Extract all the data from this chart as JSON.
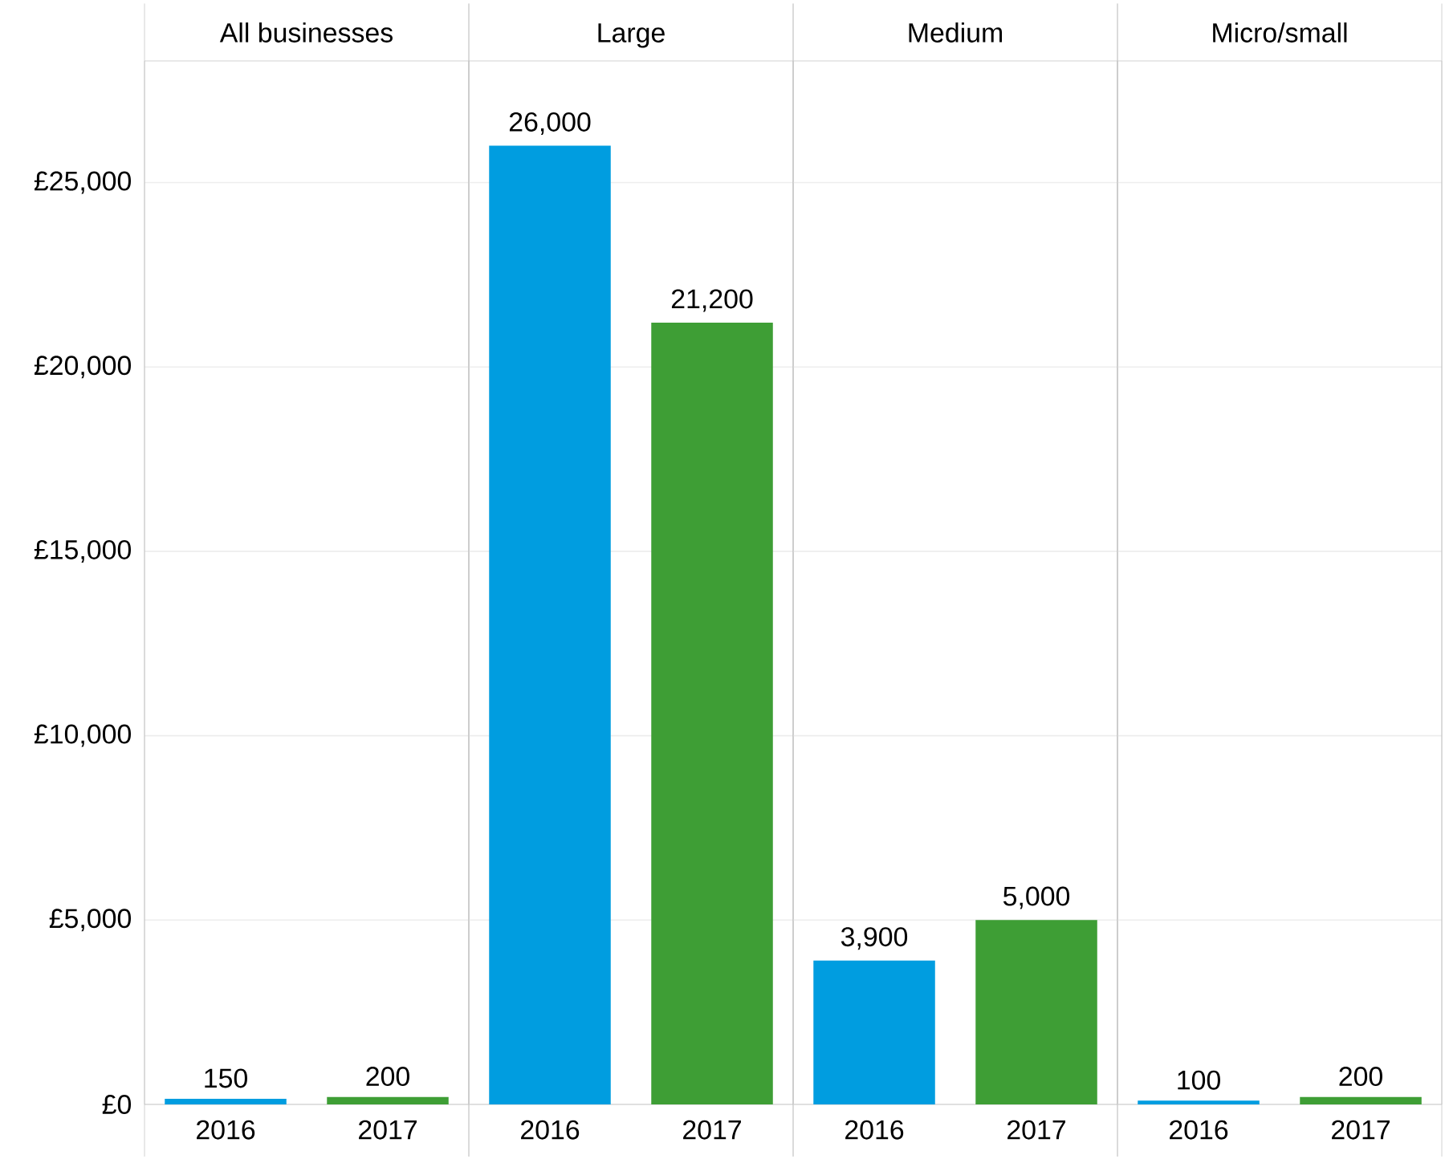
{
  "chart_data": [
    {
      "type": "bar",
      "title": "All businesses",
      "categories": [
        "2016",
        "2017"
      ],
      "values": [
        150,
        200
      ],
      "value_labels": [
        "150",
        "200"
      ],
      "colors": [
        "#009de0",
        "#3e9e35"
      ],
      "ylim": [
        0,
        28300
      ],
      "yticks": [
        {
          "value": 0,
          "label": "£0"
        },
        {
          "value": 5000,
          "label": "£5,000"
        },
        {
          "value": 10000,
          "label": "£10,000"
        },
        {
          "value": 15000,
          "label": "£15,000"
        },
        {
          "value": 20000,
          "label": "£20,000"
        },
        {
          "value": 25000,
          "label": "£25,000"
        }
      ],
      "grid": "y"
    },
    {
      "type": "bar",
      "title": "Large",
      "categories": [
        "2016",
        "2017"
      ],
      "values": [
        26000,
        21200
      ],
      "value_labels": [
        "26,000",
        "21,200"
      ],
      "colors": [
        "#009de0",
        "#3e9e35"
      ],
      "ylim": [
        0,
        28300
      ],
      "yticks": [
        {
          "value": 0,
          "label": null
        },
        {
          "value": 5000,
          "label": null
        },
        {
          "value": 10000,
          "label": null
        },
        {
          "value": 15000,
          "label": null
        },
        {
          "value": 20000,
          "label": null
        },
        {
          "value": 25000,
          "label": null
        }
      ],
      "grid": "y",
      "tick_labels": "x"
    },
    {
      "type": "bar",
      "title": "Medium",
      "categories": [
        "2016",
        "2017"
      ],
      "values": [
        3900,
        5000
      ],
      "value_labels": [
        "3,900",
        "5,000"
      ],
      "colors": [
        "#009de0",
        "#3e9e35"
      ],
      "ylim": [
        0,
        28300
      ],
      "yticks": [
        {
          "value": 0,
          "label": null
        },
        {
          "value": 5000,
          "label": null
        },
        {
          "value": 10000,
          "label": null
        },
        {
          "value": 15000,
          "label": null
        },
        {
          "value": 20000,
          "label": null
        },
        {
          "value": 25000,
          "label": null
        }
      ],
      "grid": "y",
      "tick_labels": "x"
    },
    {
      "type": "bar",
      "title": "Micro/small",
      "categories": [
        "2016",
        "2017"
      ],
      "values": [
        100,
        200
      ],
      "value_labels": [
        "100",
        "200"
      ],
      "colors": [
        "#009de0",
        "#3e9e35"
      ],
      "ylim": [
        0,
        28300
      ],
      "yticks": [
        {
          "value": 0,
          "label": null
        },
        {
          "value": 5000,
          "label": null
        },
        {
          "value": 10000,
          "label": null
        },
        {
          "value": 15000,
          "label": null
        },
        {
          "value": 20000,
          "label": null
        },
        {
          "value": 25000,
          "label": null
        }
      ],
      "grid": "y",
      "tick_labels": "x"
    }
  ]
}
